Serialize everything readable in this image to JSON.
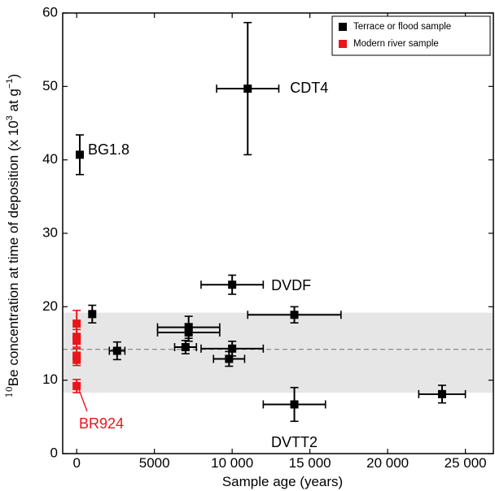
{
  "chart_data": {
    "type": "scatter",
    "xlabel": "Sample age (years)",
    "ylabel_prefix": "10",
    "ylabel_main": "Be concentration at time of deposition (x 10",
    "ylabel_exp": "3",
    "ylabel_mid": " at g",
    "ylabel_exp2": "−1",
    "ylabel_end": ")",
    "xlim": [
      -900,
      26800
    ],
    "ylim": [
      0,
      60
    ],
    "x_ticks": [
      0,
      5000,
      10000,
      15000,
      20000,
      25000
    ],
    "x_tick_labels": [
      "0",
      "5000",
      "10 000",
      "15 000",
      "20 000",
      "25 000"
    ],
    "y_ticks": [
      0,
      10,
      20,
      30,
      40,
      50,
      60
    ],
    "y_tick_labels": [
      "0",
      "10",
      "20",
      "30",
      "40",
      "50",
      "60"
    ],
    "grid": false,
    "legend_placement": "top-right",
    "band": {
      "y_low": 8.3,
      "y_high": 19.2,
      "mean": 14.2,
      "color": "#e6e6e6"
    },
    "series": [
      {
        "name": "Terrace or flood sample",
        "color": "#000000",
        "points": [
          {
            "x": 11000,
            "y": 49.7,
            "xerr": 2000,
            "yerr": 9.0,
            "label": "CDT4"
          },
          {
            "x": 200,
            "y": 40.7,
            "xerr": 0,
            "yerr": 2.7,
            "label": "BG1.8"
          },
          {
            "x": 10000,
            "y": 23.0,
            "xerr": 2000,
            "yerr": 1.3,
            "label": "DVDF"
          },
          {
            "x": 1000,
            "y": 19.0,
            "xerr": 0,
            "yerr": 1.2,
            "label": ""
          },
          {
            "x": 14000,
            "y": 18.9,
            "xerr": 3000,
            "yerr": 1.1,
            "label": ""
          },
          {
            "x": 7200,
            "y": 17.2,
            "xerr": 2000,
            "yerr": 1.5,
            "label": ""
          },
          {
            "x": 7200,
            "y": 16.5,
            "xerr": 2000,
            "yerr": 1.2,
            "label": ""
          },
          {
            "x": 7000,
            "y": 14.5,
            "xerr": 700,
            "yerr": 0.9,
            "label": ""
          },
          {
            "x": 10000,
            "y": 14.3,
            "xerr": 2000,
            "yerr": 1.0,
            "label": ""
          },
          {
            "x": 2600,
            "y": 14.0,
            "xerr": 500,
            "yerr": 1.2,
            "label": ""
          },
          {
            "x": 9800,
            "y": 12.9,
            "xerr": 1000,
            "yerr": 1.0,
            "label": ""
          },
          {
            "x": 14000,
            "y": 6.7,
            "xerr": 2000,
            "yerr": 2.3,
            "label": "DVTT2"
          },
          {
            "x": 23500,
            "y": 8.1,
            "xerr": 1500,
            "yerr": 1.2,
            "label": ""
          }
        ]
      },
      {
        "name": "Modern river sample",
        "color": "#e8161b",
        "points": [
          {
            "x": 0,
            "y": 17.7,
            "xerr": 0,
            "yerr": 1.8,
            "label": ""
          },
          {
            "x": 0,
            "y": 15.9,
            "xerr": 0,
            "yerr": 1.0,
            "label": ""
          },
          {
            "x": 0,
            "y": 15.4,
            "xerr": 0,
            "yerr": 0.9,
            "label": ""
          },
          {
            "x": 0,
            "y": 13.3,
            "xerr": 0,
            "yerr": 1.0,
            "label": ""
          },
          {
            "x": 0,
            "y": 12.9,
            "xerr": 0,
            "yerr": 0.9,
            "label": ""
          },
          {
            "x": 0,
            "y": 9.2,
            "xerr": 0,
            "yerr": 0.9,
            "label": "BR924"
          }
        ]
      }
    ]
  }
}
